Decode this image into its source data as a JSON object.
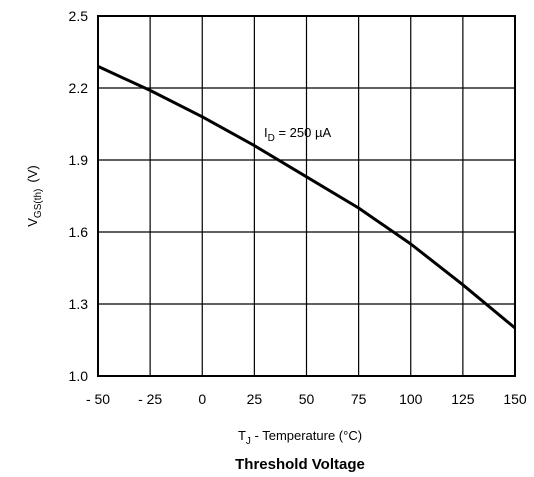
{
  "chart_data": {
    "type": "line",
    "title": "Threshold Voltage",
    "xlabel": {
      "main": "T",
      "sub": "J",
      "rest": " - Temperature (°C)"
    },
    "ylabel": {
      "main": "V",
      "sub": "GS(th)",
      "rest": "(V)"
    },
    "xlim": [
      -50,
      150
    ],
    "ylim": [
      1.0,
      2.5
    ],
    "x_ticks": [
      -50,
      -25,
      0,
      25,
      50,
      75,
      100,
      125,
      150
    ],
    "x_tick_labels": [
      "- 50",
      "- 25",
      "0",
      "25",
      "50",
      "75",
      "100",
      "125",
      "150"
    ],
    "y_ticks": [
      1.0,
      1.3,
      1.6,
      1.9,
      2.2,
      2.5
    ],
    "y_tick_labels": [
      "1.0",
      "1.3",
      "1.6",
      "1.9",
      "2.2",
      "2.5"
    ],
    "grid": true,
    "annotation": {
      "main": "I",
      "sub": "D",
      "rest": " = 250 µA"
    },
    "series": [
      {
        "x": [
          -50,
          -25,
          0,
          25,
          50,
          75,
          100,
          125,
          150
        ],
        "y": [
          2.29,
          2.19,
          2.08,
          1.96,
          1.83,
          1.7,
          1.55,
          1.38,
          1.2
        ]
      }
    ]
  }
}
